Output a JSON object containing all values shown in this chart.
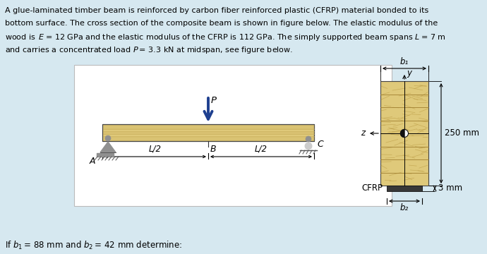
{
  "bg_color": "#d6e8f0",
  "panel_color": "#ffffff",
  "wood_color": "#dfc97a",
  "wood_line_color": "#c8ad5a",
  "cfrp_color": "#383838",
  "text_color": "#000000",
  "arrow_color": "#1e3f8f",
  "support_color": "#909090",
  "label_P": "P",
  "label_A": "A",
  "label_B": "B",
  "label_C": "C",
  "label_L2_left": "L/2",
  "label_L2_right": "L/2",
  "label_b1": "b₁",
  "label_b2": "b₂",
  "label_y": "y",
  "label_z": "z",
  "label_250": "250 mm",
  "label_3": "3 mm",
  "label_CFRP": "CFRP",
  "bottom_text": "If b₁ = 88 mm and b₂ = 42 mm determine:"
}
